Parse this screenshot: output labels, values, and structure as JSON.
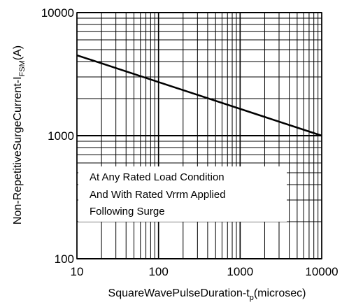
{
  "chart_data": {
    "type": "line",
    "x_scale": "log",
    "y_scale": "log",
    "xlim": [
      10,
      10000
    ],
    "ylim": [
      100,
      10000
    ],
    "x_ticks": [
      10,
      100,
      1000,
      10000
    ],
    "y_ticks": [
      100,
      1000,
      10000
    ],
    "x_tick_labels": [
      "10",
      "100",
      "1000",
      "10000"
    ],
    "y_tick_labels": [
      "100",
      "1000",
      "10000"
    ],
    "grid": true,
    "xlabel": {
      "main": "SquareWavePulseDuration-t",
      "sub": "p",
      "unit": "(microsec)"
    },
    "ylabel": {
      "main": "Non-RepetitiveSurgeCurrent-I",
      "sub": "FSM",
      "unit": "(A)"
    },
    "series": [
      {
        "x": [
          10,
          10000
        ],
        "y": [
          4500,
          1000
        ],
        "color": "#000000"
      }
    ],
    "annotation": [
      "At Any Rated Load Condition",
      "And With Rated Vrrm Applied",
      "Following Surge"
    ]
  }
}
